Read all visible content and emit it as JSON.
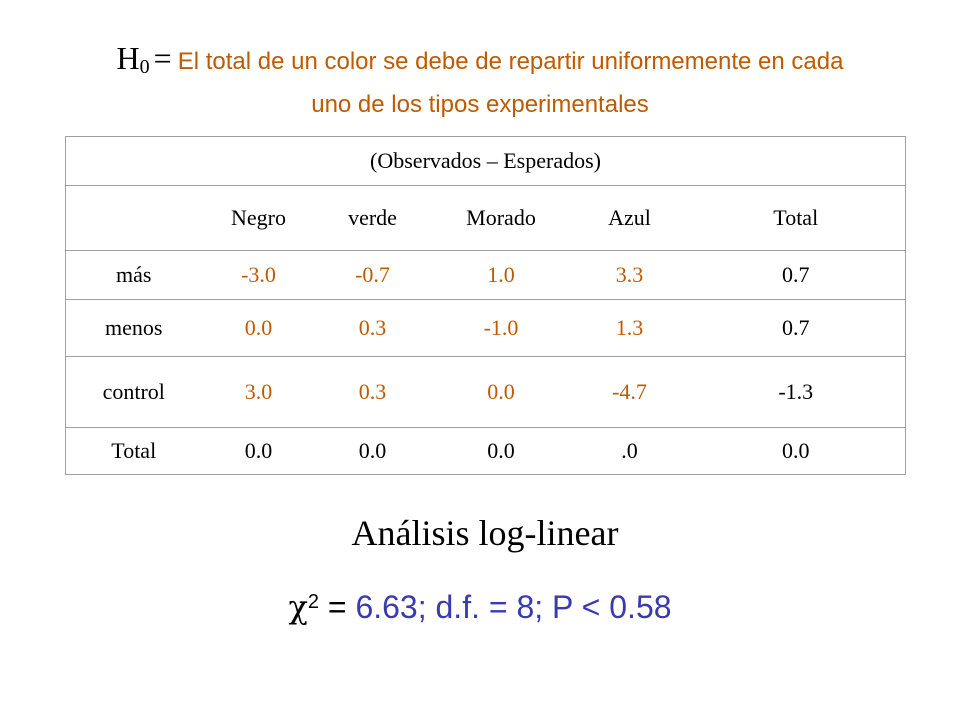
{
  "hypothesis": {
    "symbol": "H",
    "subscript": "0",
    "equals": "=",
    "line1": "El total de un color se debe de repartir uniformemente en cada",
    "line2": "uno de los tipos experimentales"
  },
  "table": {
    "title": "(Observados – Esperados)",
    "columns": [
      "",
      "Negro",
      "verde",
      "Morado",
      "Azul",
      "Total"
    ],
    "rows": [
      {
        "label": "más",
        "values": [
          "-3.0",
          "-0.7",
          "1.0",
          "3.3"
        ],
        "total": "0.7"
      },
      {
        "label": "menos",
        "values": [
          "0.0",
          "0.3",
          "-1.0",
          "1.3"
        ],
        "total": "0.7"
      },
      {
        "label": "control",
        "values": [
          "3.0",
          "0.3",
          "0.0",
          "-4.7"
        ],
        "total": "-1.3"
      },
      {
        "label": "Total",
        "values": [
          "0.0",
          "0.0",
          "0.0",
          ".0"
        ],
        "total": "0.0"
      }
    ]
  },
  "analysis": {
    "heading": "Análisis log-linear",
    "chi_symbol": "χ",
    "chi_sup": "2",
    "chi_eq": " = ",
    "result": "6.63; d.f. = 8; P < 0.58"
  },
  "colors": {
    "accent_orange": "#c05a00",
    "accent_blue": "#3a3ab0"
  }
}
